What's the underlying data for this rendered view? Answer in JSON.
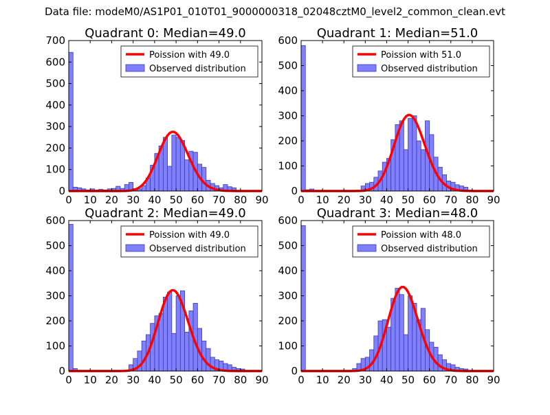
{
  "figure_title": "Data file: modeM0/AS1P01_010T01_9000000318_02048cztM0_level2_common_clean.evt",
  "colors": {
    "bar_fill": "#8080ff",
    "bar_edge": "#3a3aa8",
    "curve": "#ff0000"
  },
  "chart_data": [
    {
      "type": "bar",
      "title": "Quadrant 0: Median=49.0",
      "xlim": [
        0,
        90
      ],
      "ylim": [
        0,
        700
      ],
      "xticks": [
        0,
        10,
        20,
        30,
        40,
        50,
        60,
        70,
        80,
        90
      ],
      "yticks": [
        0,
        100,
        200,
        300,
        400,
        500,
        600,
        700
      ],
      "bin_width": 2,
      "legend": {
        "curve_label": "Poission with 49.0",
        "bar_label": "Observed distribution",
        "location": "upper right"
      },
      "hist": [
        [
          0,
          645
        ],
        [
          2,
          18
        ],
        [
          4,
          15
        ],
        [
          6,
          10
        ],
        [
          8,
          5
        ],
        [
          10,
          10
        ],
        [
          12,
          5
        ],
        [
          14,
          8
        ],
        [
          16,
          5
        ],
        [
          18,
          10
        ],
        [
          20,
          12
        ],
        [
          22,
          22
        ],
        [
          24,
          12
        ],
        [
          26,
          30
        ],
        [
          28,
          40
        ],
        [
          30,
          5
        ],
        [
          32,
          10
        ],
        [
          34,
          25
        ],
        [
          36,
          60
        ],
        [
          38,
          120
        ],
        [
          40,
          175
        ],
        [
          42,
          210
        ],
        [
          44,
          250
        ],
        [
          46,
          115
        ],
        [
          48,
          260
        ],
        [
          50,
          250
        ],
        [
          52,
          235
        ],
        [
          54,
          145
        ],
        [
          56,
          185
        ],
        [
          58,
          180
        ],
        [
          60,
          125
        ],
        [
          62,
          110
        ],
        [
          64,
          50
        ],
        [
          66,
          35
        ],
        [
          68,
          25
        ],
        [
          70,
          15
        ],
        [
          72,
          30
        ],
        [
          74,
          20
        ],
        [
          76,
          15
        ]
      ],
      "poisson_mean": 49.0,
      "poisson_peak": 275
    },
    {
      "type": "bar",
      "title": "Quadrant 1: Median=51.0",
      "xlim": [
        0,
        90
      ],
      "ylim": [
        0,
        600
      ],
      "xticks": [
        0,
        10,
        20,
        30,
        40,
        50,
        60,
        70,
        80,
        90
      ],
      "yticks": [
        0,
        100,
        200,
        300,
        400,
        500,
        600
      ],
      "bin_width": 2,
      "legend": {
        "curve_label": "Poission with 51.0",
        "bar_label": "Observed distribution",
        "location": "upper right"
      },
      "hist": [
        [
          0,
          580
        ],
        [
          2,
          5
        ],
        [
          4,
          8
        ],
        [
          28,
          20
        ],
        [
          30,
          30
        ],
        [
          32,
          35
        ],
        [
          34,
          55
        ],
        [
          36,
          80
        ],
        [
          38,
          115
        ],
        [
          40,
          130
        ],
        [
          42,
          205
        ],
        [
          44,
          265
        ],
        [
          46,
          280
        ],
        [
          48,
          165
        ],
        [
          50,
          290
        ],
        [
          52,
          300
        ],
        [
          54,
          200
        ],
        [
          56,
          165
        ],
        [
          58,
          280
        ],
        [
          60,
          225
        ],
        [
          62,
          135
        ],
        [
          64,
          95
        ],
        [
          66,
          65
        ],
        [
          68,
          40
        ],
        [
          70,
          35
        ],
        [
          72,
          25
        ],
        [
          74,
          20
        ],
        [
          76,
          15
        ]
      ],
      "poisson_mean": 51.0,
      "poisson_peak": 303
    },
    {
      "type": "bar",
      "title": "Quadrant 2: Median=49.0",
      "xlim": [
        0,
        90
      ],
      "ylim": [
        0,
        600
      ],
      "xticks": [
        0,
        10,
        20,
        30,
        40,
        50,
        60,
        70,
        80,
        90
      ],
      "yticks": [
        0,
        100,
        200,
        300,
        400,
        500,
        600
      ],
      "bin_width": 2,
      "legend": {
        "curve_label": "Poission with 49.0",
        "bar_label": "Observed distribution",
        "location": "upper right"
      },
      "hist": [
        [
          0,
          585
        ],
        [
          2,
          10
        ],
        [
          28,
          25
        ],
        [
          30,
          50
        ],
        [
          32,
          80
        ],
        [
          34,
          120
        ],
        [
          36,
          145
        ],
        [
          38,
          190
        ],
        [
          40,
          220
        ],
        [
          42,
          230
        ],
        [
          44,
          295
        ],
        [
          46,
          315
        ],
        [
          48,
          150
        ],
        [
          50,
          300
        ],
        [
          52,
          320
        ],
        [
          54,
          155
        ],
        [
          56,
          240
        ],
        [
          58,
          270
        ],
        [
          60,
          170
        ],
        [
          62,
          120
        ],
        [
          64,
          90
        ],
        [
          66,
          55
        ],
        [
          68,
          45
        ],
        [
          70,
          40
        ],
        [
          72,
          30
        ],
        [
          74,
          25
        ],
        [
          76,
          15
        ],
        [
          78,
          10
        ],
        [
          80,
          8
        ]
      ],
      "poisson_mean": 49.0,
      "poisson_peak": 322
    },
    {
      "type": "bar",
      "title": "Quadrant 3: Median=48.0",
      "xlim": [
        0,
        90
      ],
      "ylim": [
        0,
        600
      ],
      "xticks": [
        0,
        10,
        20,
        30,
        40,
        50,
        60,
        70,
        80,
        90
      ],
      "yticks": [
        0,
        100,
        200,
        300,
        400,
        500,
        600
      ],
      "bin_width": 2,
      "legend": {
        "curve_label": "Poission with 48.0",
        "bar_label": "Observed distribution",
        "location": "upper right"
      },
      "hist": [
        [
          0,
          580
        ],
        [
          24,
          10
        ],
        [
          26,
          30
        ],
        [
          28,
          50
        ],
        [
          30,
          55
        ],
        [
          32,
          85
        ],
        [
          34,
          140
        ],
        [
          36,
          200
        ],
        [
          38,
          205
        ],
        [
          40,
          175
        ],
        [
          42,
          290
        ],
        [
          44,
          330
        ],
        [
          46,
          305
        ],
        [
          48,
          145
        ],
        [
          50,
          300
        ],
        [
          52,
          270
        ],
        [
          54,
          205
        ],
        [
          56,
          250
        ],
        [
          58,
          165
        ],
        [
          60,
          115
        ],
        [
          62,
          95
        ],
        [
          64,
          65
        ],
        [
          66,
          45
        ],
        [
          68,
          30
        ],
        [
          70,
          25
        ],
        [
          72,
          15
        ],
        [
          74,
          10
        ],
        [
          76,
          8
        ]
      ],
      "poisson_mean": 48.0,
      "poisson_peak": 335
    }
  ]
}
